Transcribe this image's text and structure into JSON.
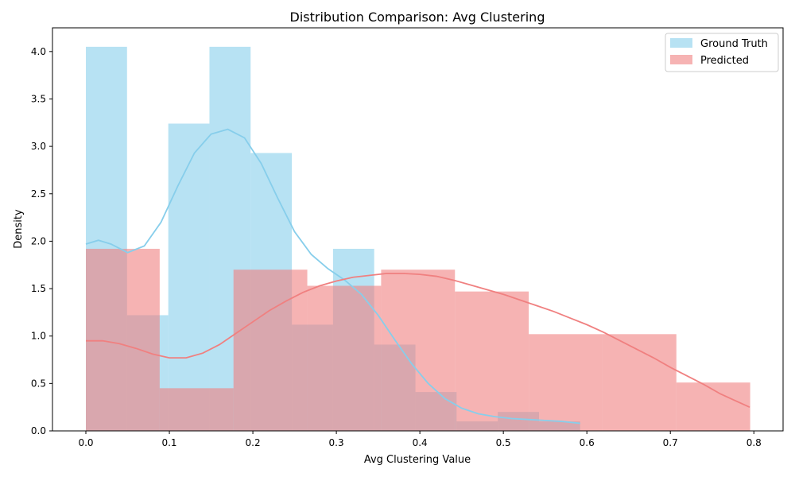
{
  "chart_data": {
    "type": "histogram",
    "title": "Distribution Comparison: Avg Clustering",
    "xlabel": "Avg Clustering Value",
    "ylabel": "Density",
    "xlim": [
      -0.04,
      0.835
    ],
    "ylim": [
      0,
      4.25
    ],
    "xticks": [
      "0.0",
      "0.1",
      "0.2",
      "0.3",
      "0.4",
      "0.5",
      "0.6",
      "0.7",
      "0.8"
    ],
    "yticks": [
      "0.0",
      "0.5",
      "1.0",
      "1.5",
      "2.0",
      "2.5",
      "3.0",
      "3.5",
      "4.0"
    ],
    "grid": false,
    "legend_position": "top-right",
    "series": [
      {
        "name": "Ground Truth",
        "color": "#87ceeb",
        "bin_edges": [
          0.0,
          0.0493,
          0.0987,
          0.148,
          0.1973,
          0.2467,
          0.296,
          0.3453,
          0.3947,
          0.444,
          0.4933,
          0.5427,
          0.592
        ],
        "density": [
          4.05,
          1.22,
          3.24,
          4.05,
          2.93,
          1.12,
          1.92,
          0.91,
          0.41,
          0.1,
          0.2,
          0.1
        ],
        "kde": [
          [
            0.0,
            1.97
          ],
          [
            0.015,
            2.01
          ],
          [
            0.03,
            1.97
          ],
          [
            0.05,
            1.88
          ],
          [
            0.07,
            1.95
          ],
          [
            0.09,
            2.2
          ],
          [
            0.11,
            2.58
          ],
          [
            0.13,
            2.93
          ],
          [
            0.15,
            3.13
          ],
          [
            0.17,
            3.18
          ],
          [
            0.19,
            3.09
          ],
          [
            0.21,
            2.82
          ],
          [
            0.23,
            2.45
          ],
          [
            0.25,
            2.1
          ],
          [
            0.27,
            1.86
          ],
          [
            0.29,
            1.71
          ],
          [
            0.31,
            1.59
          ],
          [
            0.33,
            1.44
          ],
          [
            0.35,
            1.22
          ],
          [
            0.37,
            0.96
          ],
          [
            0.39,
            0.71
          ],
          [
            0.41,
            0.5
          ],
          [
            0.43,
            0.34
          ],
          [
            0.45,
            0.24
          ],
          [
            0.47,
            0.18
          ],
          [
            0.49,
            0.15
          ],
          [
            0.51,
            0.13
          ],
          [
            0.53,
            0.12
          ],
          [
            0.55,
            0.11
          ],
          [
            0.57,
            0.1
          ],
          [
            0.592,
            0.08
          ]
        ]
      },
      {
        "name": "Predicted",
        "color": "#f08080",
        "bin_edges": [
          0.0,
          0.0884,
          0.1768,
          0.2652,
          0.3536,
          0.442,
          0.5304,
          0.6188,
          0.7072,
          0.7956
        ],
        "density": [
          1.92,
          0.45,
          1.7,
          1.53,
          1.7,
          1.47,
          1.02,
          1.02,
          0.51
        ],
        "kde": [
          [
            0.0,
            0.95
          ],
          [
            0.02,
            0.95
          ],
          [
            0.04,
            0.92
          ],
          [
            0.06,
            0.87
          ],
          [
            0.08,
            0.81
          ],
          [
            0.1,
            0.77
          ],
          [
            0.12,
            0.77
          ],
          [
            0.14,
            0.82
          ],
          [
            0.16,
            0.91
          ],
          [
            0.18,
            1.03
          ],
          [
            0.2,
            1.15
          ],
          [
            0.22,
            1.27
          ],
          [
            0.24,
            1.37
          ],
          [
            0.26,
            1.46
          ],
          [
            0.28,
            1.53
          ],
          [
            0.3,
            1.58
          ],
          [
            0.32,
            1.62
          ],
          [
            0.34,
            1.64
          ],
          [
            0.36,
            1.66
          ],
          [
            0.38,
            1.66
          ],
          [
            0.4,
            1.65
          ],
          [
            0.42,
            1.63
          ],
          [
            0.44,
            1.59
          ],
          [
            0.46,
            1.54
          ],
          [
            0.48,
            1.49
          ],
          [
            0.5,
            1.44
          ],
          [
            0.52,
            1.38
          ],
          [
            0.54,
            1.32
          ],
          [
            0.56,
            1.26
          ],
          [
            0.58,
            1.19
          ],
          [
            0.6,
            1.12
          ],
          [
            0.62,
            1.04
          ],
          [
            0.64,
            0.95
          ],
          [
            0.66,
            0.86
          ],
          [
            0.68,
            0.77
          ],
          [
            0.7,
            0.67
          ],
          [
            0.72,
            0.58
          ],
          [
            0.74,
            0.49
          ],
          [
            0.76,
            0.39
          ],
          [
            0.78,
            0.31
          ],
          [
            0.795,
            0.25
          ]
        ]
      }
    ]
  }
}
